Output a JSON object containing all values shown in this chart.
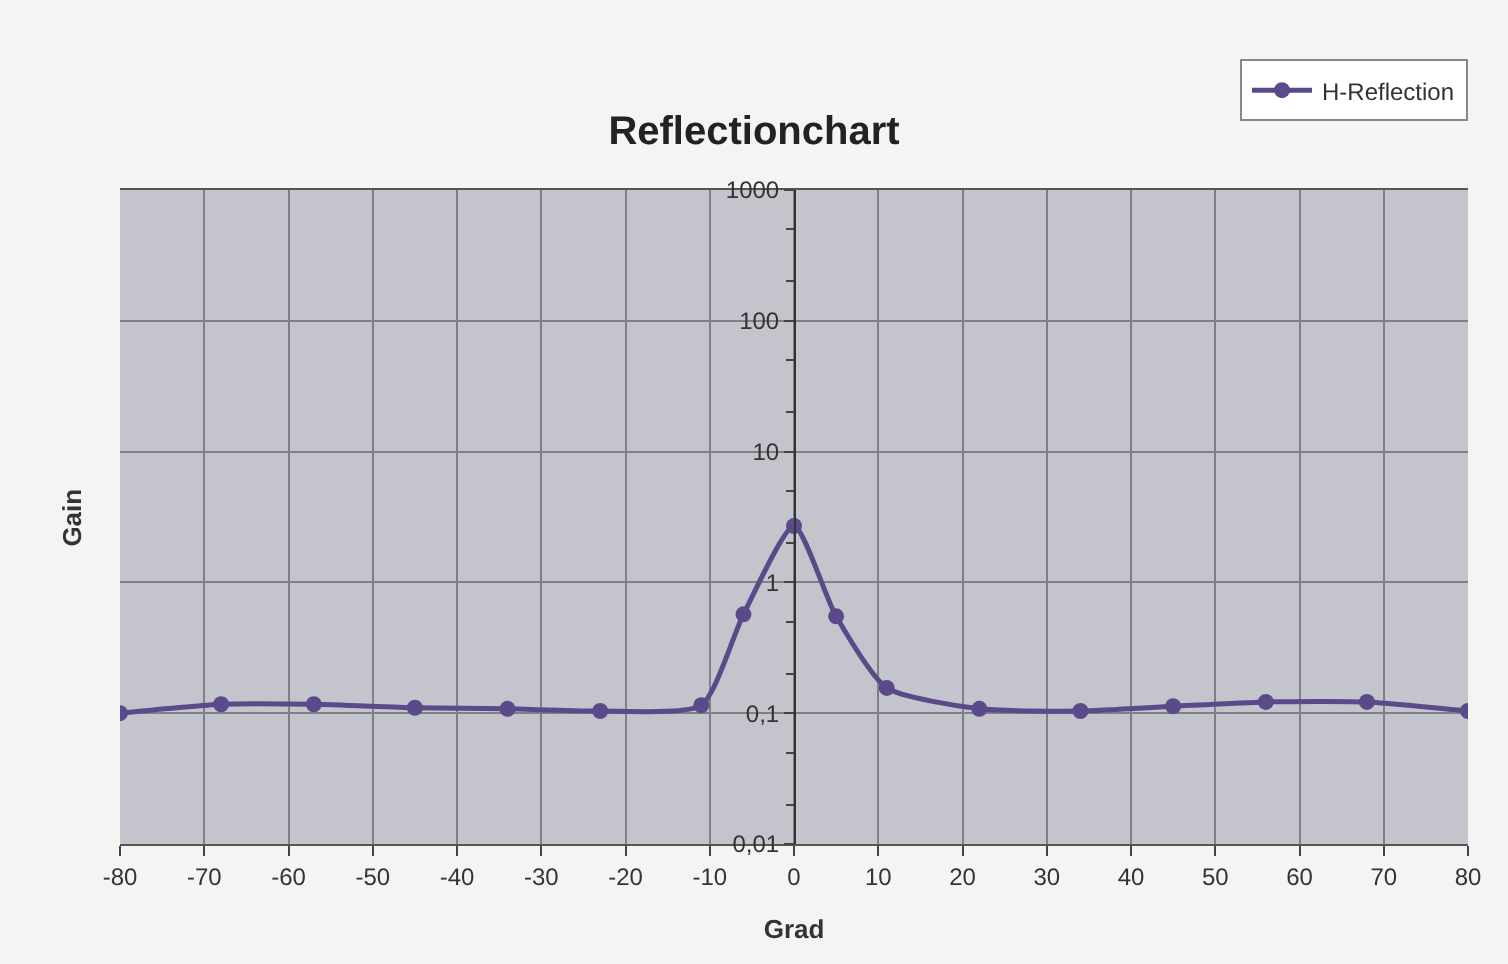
{
  "chart_data": {
    "type": "line",
    "title": "Reflectionchart",
    "xlabel": "Grad",
    "ylabel": "Gain",
    "x": [
      -80,
      -68,
      -57,
      -45,
      -34,
      -23,
      -11,
      -6,
      0,
      5,
      11,
      22,
      34,
      45,
      56,
      68,
      80
    ],
    "series": [
      {
        "name": "H-Reflection",
        "color": "#5b4a8a",
        "values": [
          0.1,
          0.117,
          0.117,
          0.11,
          0.108,
          0.104,
          0.115,
          0.57,
          2.7,
          0.55,
          0.156,
          0.108,
          0.104,
          0.113,
          0.122,
          0.122,
          0.104
        ]
      }
    ],
    "log": "y",
    "xlim": [
      -80,
      80
    ],
    "xticks": [
      -80,
      -70,
      -60,
      -50,
      -40,
      -30,
      -20,
      -10,
      0,
      10,
      20,
      30,
      40,
      50,
      60,
      70,
      80
    ],
    "ylim": [
      0.01,
      1000
    ],
    "yticks": [
      {
        "value": 0.01,
        "label": "0,01"
      },
      {
        "value": 0.1,
        "label": "0,1"
      },
      1,
      10,
      100,
      1000
    ],
    "grid": true,
    "legend": "top right",
    "marker": "circle",
    "line_style": "solid"
  }
}
